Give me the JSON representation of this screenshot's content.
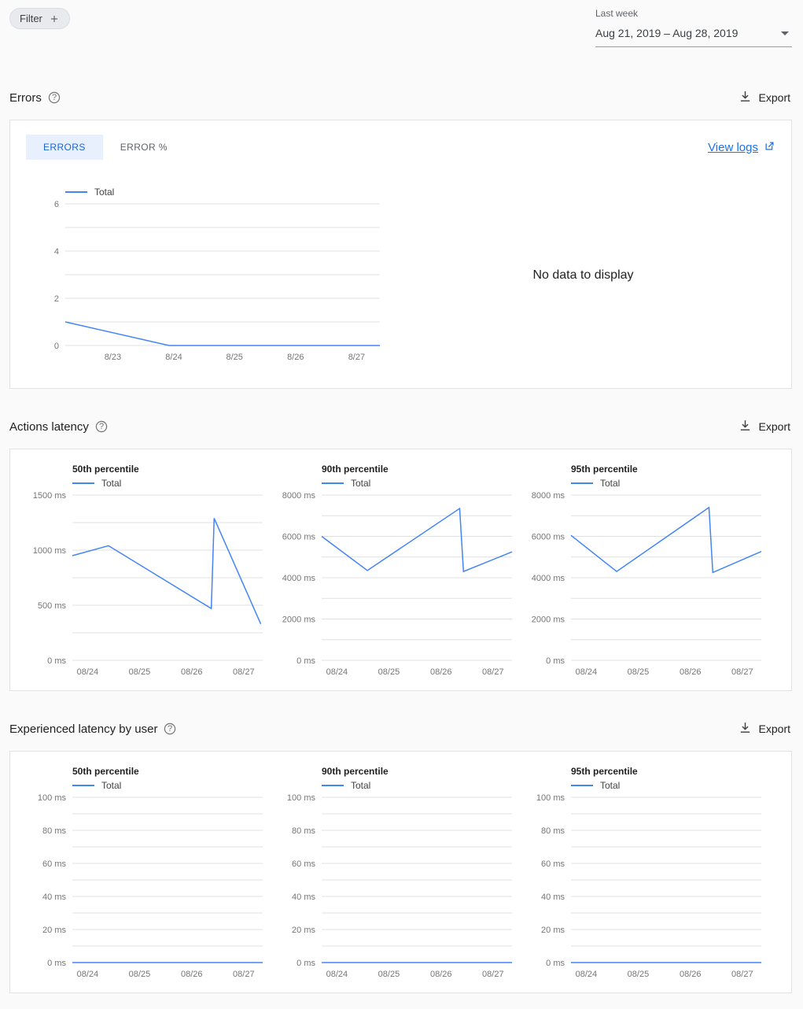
{
  "colors": {
    "line": "#4285f4",
    "link": "#1a73e8",
    "tab_active_bg": "#e8f0fe",
    "tab_active_text": "#1967d2",
    "grid": "#e0e0e0",
    "axis_text": "#757575"
  },
  "toolbar": {
    "filter_label": "Filter",
    "date_label": "Last week",
    "date_value": "Aug 21, 2019 – Aug 28, 2019"
  },
  "labels": {
    "export": "Export"
  },
  "sections": {
    "errors": {
      "title": "Errors",
      "tabs": [
        {
          "label": "ERRORS",
          "active": true
        },
        {
          "label": "ERROR %",
          "active": false
        }
      ],
      "view_logs": "View logs",
      "no_data": "No data to display"
    },
    "actions_latency": {
      "title": "Actions latency"
    },
    "user_latency": {
      "title": "Experienced latency by user"
    }
  },
  "chart_data": [
    {
      "type": "line",
      "name": "errors-total",
      "unit": "",
      "ymin": 0,
      "ymax": 6,
      "grid_step": 1,
      "yticks": [
        0,
        2,
        4,
        6
      ],
      "xticks": [
        {
          "pos": 0.151,
          "label": "8/23"
        },
        {
          "pos": 0.345,
          "label": "8/24"
        },
        {
          "pos": 0.538,
          "label": "8/25"
        },
        {
          "pos": 0.732,
          "label": "8/26"
        },
        {
          "pos": 0.926,
          "label": "8/27"
        }
      ],
      "series": [
        {
          "name": "Total",
          "points": [
            [
              0,
              1
            ],
            [
              0.33,
              0
            ],
            [
              1,
              0
            ]
          ]
        }
      ]
    },
    {
      "type": "line",
      "name": "actions-latency-p50",
      "title": "50th percentile",
      "unit": " ms",
      "ymin": 0,
      "ymax": 1500,
      "grid_step": 250,
      "yticks": [
        0,
        500,
        1000,
        1500
      ],
      "xticks": [
        {
          "pos": 0.08,
          "label": "08/24"
        },
        {
          "pos": 0.353,
          "label": "08/25"
        },
        {
          "pos": 0.627,
          "label": "08/26"
        },
        {
          "pos": 0.9,
          "label": "08/27"
        }
      ],
      "series": [
        {
          "name": "Total",
          "points": [
            [
              0,
              950
            ],
            [
              0.19,
              1040
            ],
            [
              0.73,
              470
            ],
            [
              0.745,
              1290
            ],
            [
              0.99,
              330
            ]
          ]
        }
      ]
    },
    {
      "type": "line",
      "name": "actions-latency-p90",
      "title": "90th percentile",
      "unit": " ms",
      "ymin": 0,
      "ymax": 8000,
      "grid_step": 1000,
      "yticks": [
        0,
        2000,
        4000,
        6000,
        8000
      ],
      "xticks": [
        {
          "pos": 0.08,
          "label": "08/24"
        },
        {
          "pos": 0.353,
          "label": "08/25"
        },
        {
          "pos": 0.627,
          "label": "08/26"
        },
        {
          "pos": 0.9,
          "label": "08/27"
        }
      ],
      "series": [
        {
          "name": "Total",
          "points": [
            [
              0,
              6000
            ],
            [
              0.24,
              4350
            ],
            [
              0.725,
              7350
            ],
            [
              0.745,
              4300
            ],
            [
              1,
              5250
            ]
          ]
        }
      ]
    },
    {
      "type": "line",
      "name": "actions-latency-p95",
      "title": "95th percentile",
      "unit": " ms",
      "ymin": 0,
      "ymax": 8000,
      "grid_step": 1000,
      "yticks": [
        0,
        2000,
        4000,
        6000,
        8000
      ],
      "xticks": [
        {
          "pos": 0.08,
          "label": "08/24"
        },
        {
          "pos": 0.353,
          "label": "08/25"
        },
        {
          "pos": 0.627,
          "label": "08/26"
        },
        {
          "pos": 0.9,
          "label": "08/27"
        }
      ],
      "series": [
        {
          "name": "Total",
          "points": [
            [
              0,
              6050
            ],
            [
              0.24,
              4300
            ],
            [
              0.725,
              7400
            ],
            [
              0.745,
              4250
            ],
            [
              1,
              5270
            ]
          ]
        }
      ]
    },
    {
      "type": "line",
      "name": "user-latency-p50",
      "title": "50th percentile",
      "unit": " ms",
      "ymin": 0,
      "ymax": 100,
      "grid_step": 10,
      "yticks": [
        0,
        20,
        40,
        60,
        80,
        100
      ],
      "xticks": [
        {
          "pos": 0.08,
          "label": "08/24"
        },
        {
          "pos": 0.353,
          "label": "08/25"
        },
        {
          "pos": 0.627,
          "label": "08/26"
        },
        {
          "pos": 0.9,
          "label": "08/27"
        }
      ],
      "series": [
        {
          "name": "Total",
          "points": [
            [
              0,
              0
            ],
            [
              1,
              0
            ]
          ]
        }
      ]
    },
    {
      "type": "line",
      "name": "user-latency-p90",
      "title": "90th percentile",
      "unit": " ms",
      "ymin": 0,
      "ymax": 100,
      "grid_step": 10,
      "yticks": [
        0,
        20,
        40,
        60,
        80,
        100
      ],
      "xticks": [
        {
          "pos": 0.08,
          "label": "08/24"
        },
        {
          "pos": 0.353,
          "label": "08/25"
        },
        {
          "pos": 0.627,
          "label": "08/26"
        },
        {
          "pos": 0.9,
          "label": "08/27"
        }
      ],
      "series": [
        {
          "name": "Total",
          "points": [
            [
              0,
              0
            ],
            [
              1,
              0
            ]
          ]
        }
      ]
    },
    {
      "type": "line",
      "name": "user-latency-p95",
      "title": "95th percentile",
      "unit": " ms",
      "ymin": 0,
      "ymax": 100,
      "grid_step": 10,
      "yticks": [
        0,
        20,
        40,
        60,
        80,
        100
      ],
      "xticks": [
        {
          "pos": 0.08,
          "label": "08/24"
        },
        {
          "pos": 0.353,
          "label": "08/25"
        },
        {
          "pos": 0.627,
          "label": "08/26"
        },
        {
          "pos": 0.9,
          "label": "08/27"
        }
      ],
      "series": [
        {
          "name": "Total",
          "points": [
            [
              0,
              0
            ],
            [
              1,
              0
            ]
          ]
        }
      ]
    }
  ]
}
